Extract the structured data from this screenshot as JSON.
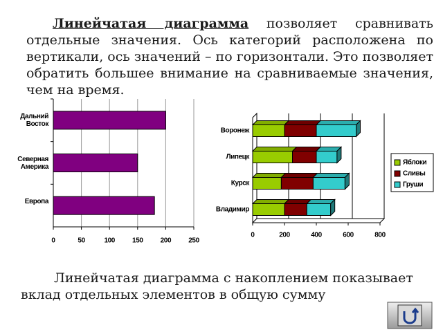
{
  "text": {
    "paragraph1": {
      "term": "Линейчатая диаграмма",
      "rest": " позволяет сравнивать отдельные значения. Ось категорий расположена по вертикали, ось значений – по горизонтали. Это позволяет обратить большее внимание на сравниваемые значения, чем на время."
    },
    "paragraph2": "Линейчатая диаграмма с накоплением показывает вклад отдельных элементов в общую сумму"
  },
  "chart_data": [
    {
      "type": "bar",
      "categories": [
        "Дальний Восток",
        "Северная Америка",
        "Европа"
      ],
      "values": [
        200,
        150,
        180
      ],
      "color": "#800080",
      "xlim": [
        0,
        250
      ],
      "xticks": [
        0,
        50,
        100,
        150,
        200,
        250
      ],
      "grid": true
    },
    {
      "type": "stacked_bar",
      "categories": [
        "Воронеж",
        "Липецк",
        "Курск",
        "Владимир"
      ],
      "series": [
        {
          "name": "Яблоки",
          "color": "#99cc00",
          "values": [
            200,
            250,
            180,
            200
          ]
        },
        {
          "name": "Сливы",
          "color": "#800000",
          "values": [
            200,
            150,
            200,
            140
          ]
        },
        {
          "name": "Груши",
          "color": "#33cccc",
          "values": [
            250,
            130,
            200,
            150
          ]
        }
      ],
      "xlim": [
        0,
        800
      ],
      "xticks": [
        0,
        200,
        400,
        600,
        800
      ],
      "grid": true,
      "legend": "right"
    }
  ]
}
